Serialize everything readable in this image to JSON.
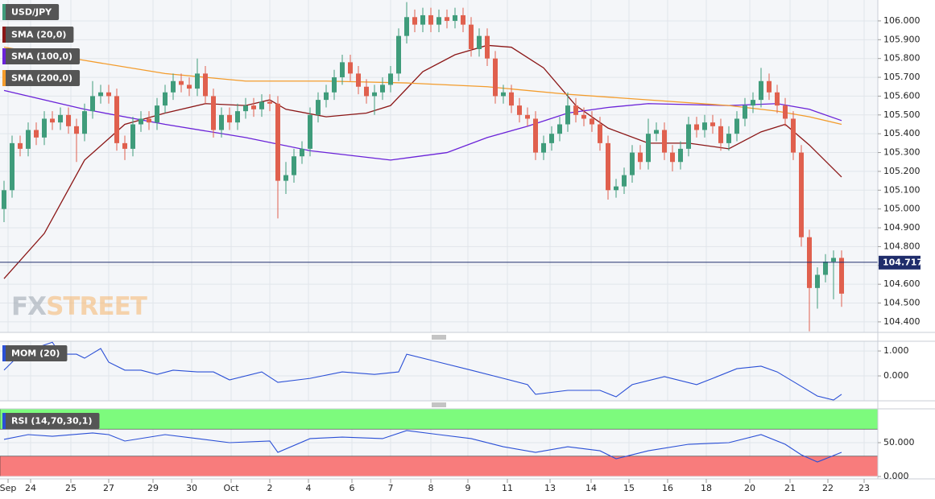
{
  "chart_data": [
    {
      "type": "candlestick",
      "title": "USD/JPY",
      "open": [
        105.0,
        105.1,
        105.35,
        105.32,
        105.42,
        105.38,
        105.48,
        105.46,
        105.5,
        105.44,
        105.4,
        105.52,
        105.6,
        105.62,
        105.6,
        105.35,
        105.32,
        105.45,
        105.48,
        105.46,
        105.55,
        105.62,
        105.68,
        105.66,
        105.64,
        105.72,
        105.6,
        105.42,
        105.5,
        105.46,
        105.52,
        105.55,
        105.53,
        105.57,
        105.56,
        105.15,
        105.18,
        105.28,
        105.32,
        105.5,
        105.58,
        105.62,
        105.7,
        105.78,
        105.72,
        105.65,
        105.6,
        105.62,
        105.66,
        105.72,
        105.92,
        106.02,
        105.98,
        106.03,
        105.98,
        106.02,
        106.0,
        106.03,
        105.98,
        105.85,
        105.92,
        105.8,
        105.6,
        105.62,
        105.55,
        105.5,
        105.48,
        105.3,
        105.35,
        105.4,
        105.45,
        105.55,
        105.5,
        105.48,
        105.45,
        105.35,
        105.1,
        105.12,
        105.18,
        105.3,
        105.25,
        105.4,
        105.42,
        105.3,
        105.25,
        105.32,
        105.45,
        105.42,
        105.46,
        105.44,
        105.35,
        105.4,
        105.48,
        105.55,
        105.58,
        105.68,
        105.62,
        105.55,
        105.48,
        105.3,
        104.85,
        104.58,
        104.65,
        104.72,
        104.74
      ],
      "high": [
        105.15,
        105.39,
        105.39,
        105.46,
        105.46,
        105.52,
        105.52,
        105.54,
        105.54,
        105.48,
        105.56,
        105.68,
        105.66,
        105.66,
        105.64,
        105.39,
        105.49,
        105.52,
        105.52,
        105.59,
        105.66,
        105.72,
        105.72,
        105.7,
        105.8,
        105.76,
        105.64,
        105.54,
        105.54,
        105.56,
        105.59,
        105.59,
        105.61,
        105.61,
        105.6,
        105.25,
        105.32,
        105.36,
        105.54,
        105.62,
        105.66,
        105.74,
        105.82,
        105.82,
        105.76,
        105.69,
        105.66,
        105.7,
        105.76,
        105.96,
        106.1,
        106.06,
        106.07,
        106.07,
        106.06,
        106.06,
        106.07,
        106.07,
        106.02,
        105.96,
        105.96,
        105.84,
        105.66,
        105.66,
        105.59,
        105.54,
        105.52,
        105.39,
        105.44,
        105.49,
        105.62,
        105.59,
        105.54,
        105.52,
        105.49,
        105.39,
        105.16,
        105.22,
        105.34,
        105.34,
        105.48,
        105.46,
        105.46,
        105.34,
        105.36,
        105.49,
        105.49,
        105.5,
        105.5,
        105.48,
        105.44,
        105.52,
        105.59,
        105.62,
        105.75,
        105.72,
        105.66,
        105.59,
        105.52,
        105.34,
        104.89,
        104.69,
        104.76,
        104.78,
        104.78
      ],
      "low": [
        104.93,
        105.06,
        105.28,
        105.28,
        105.34,
        105.34,
        105.42,
        105.42,
        105.4,
        105.25,
        105.36,
        105.48,
        105.56,
        105.56,
        105.31,
        105.26,
        105.28,
        105.41,
        105.42,
        105.42,
        105.51,
        105.58,
        105.62,
        105.6,
        105.6,
        105.56,
        105.38,
        105.38,
        105.42,
        105.42,
        105.48,
        105.49,
        105.49,
        105.52,
        104.95,
        105.08,
        105.14,
        105.24,
        105.28,
        105.46,
        105.54,
        105.58,
        105.66,
        105.68,
        105.61,
        105.56,
        105.5,
        105.58,
        105.62,
        105.68,
        105.88,
        105.94,
        105.94,
        105.94,
        105.94,
        105.96,
        105.96,
        105.94,
        105.81,
        105.81,
        105.76,
        105.56,
        105.56,
        105.51,
        105.46,
        105.44,
        105.26,
        105.26,
        105.31,
        105.36,
        105.41,
        105.46,
        105.44,
        105.41,
        105.31,
        105.05,
        105.06,
        105.08,
        105.14,
        105.21,
        105.21,
        105.36,
        105.26,
        105.2,
        105.21,
        105.28,
        105.38,
        105.38,
        105.4,
        105.31,
        105.31,
        105.36,
        105.44,
        105.51,
        105.54,
        105.58,
        105.51,
        105.44,
        105.26,
        104.8,
        104.35,
        104.47,
        104.61,
        104.52,
        104.48
      ],
      "close": [
        105.1,
        105.35,
        105.32,
        105.42,
        105.38,
        105.48,
        105.46,
        105.5,
        105.44,
        105.4,
        105.52,
        105.6,
        105.62,
        105.6,
        105.35,
        105.32,
        105.45,
        105.48,
        105.46,
        105.55,
        105.62,
        105.68,
        105.66,
        105.64,
        105.72,
        105.6,
        105.42,
        105.5,
        105.46,
        105.52,
        105.55,
        105.53,
        105.57,
        105.56,
        105.15,
        105.18,
        105.28,
        105.32,
        105.5,
        105.58,
        105.62,
        105.7,
        105.78,
        105.72,
        105.65,
        105.6,
        105.62,
        105.66,
        105.72,
        105.92,
        106.02,
        105.98,
        106.03,
        105.98,
        106.02,
        106.0,
        106.03,
        105.98,
        105.85,
        105.92,
        105.8,
        105.6,
        105.62,
        105.55,
        105.5,
        105.48,
        105.3,
        105.35,
        105.4,
        105.45,
        105.55,
        105.5,
        105.48,
        105.45,
        105.35,
        105.1,
        105.12,
        105.18,
        105.3,
        105.25,
        105.4,
        105.42,
        105.3,
        105.25,
        105.32,
        105.45,
        105.42,
        105.46,
        105.44,
        105.35,
        105.4,
        105.48,
        105.55,
        105.58,
        105.68,
        105.62,
        105.55,
        105.48,
        105.3,
        104.85,
        104.58,
        104.65,
        104.72,
        104.74,
        104.55
      ],
      "up_color": "#3f9c7b",
      "down_color": "#e0604e",
      "series": [
        {
          "name": "SMA (20,0)",
          "color": "#8b1616",
          "x": [
            0,
            5,
            10,
            15,
            20,
            25,
            30,
            33,
            35,
            40,
            45,
            48,
            52,
            56,
            60,
            63,
            67,
            71,
            75,
            80,
            85,
            90,
            94,
            97,
            100,
            104
          ],
          "values": [
            104.63,
            104.87,
            105.26,
            105.45,
            105.51,
            105.56,
            105.55,
            105.58,
            105.53,
            105.49,
            105.51,
            105.55,
            105.73,
            105.82,
            105.87,
            105.86,
            105.75,
            105.55,
            105.43,
            105.35,
            105.35,
            105.32,
            105.41,
            105.45,
            105.34,
            105.17
          ]
        },
        {
          "name": "SMA (100,0)",
          "color": "#6a22d8",
          "x": [
            0,
            10,
            20,
            30,
            38,
            48,
            55,
            60,
            65,
            70,
            75,
            80,
            90,
            96,
            100,
            104
          ],
          "values": [
            105.63,
            105.53,
            105.45,
            105.38,
            105.31,
            105.26,
            105.3,
            105.38,
            105.44,
            105.51,
            105.54,
            105.56,
            105.55,
            105.56,
            105.53,
            105.47
          ]
        },
        {
          "name": "SMA (200,0)",
          "color": "#f39c2c",
          "x": [
            0,
            10,
            20,
            30,
            40,
            50,
            60,
            70,
            80,
            90,
            96,
            100,
            104
          ],
          "values": [
            105.86,
            105.79,
            105.72,
            105.68,
            105.68,
            105.67,
            105.65,
            105.61,
            105.58,
            105.55,
            105.52,
            105.49,
            105.45
          ]
        }
      ],
      "last_price": 104.717,
      "last_price_color": "#1f2d6b",
      "ylim": [
        104.344,
        106.111
      ],
      "yticks": [
        {
          "value": 104.4,
          "label": "104.400"
        },
        {
          "value": 104.5,
          "label": "104.500"
        },
        {
          "value": 104.6,
          "label": "104.600"
        },
        {
          "value": 104.7,
          "label": "104.700"
        },
        {
          "value": 104.8,
          "label": "104.800"
        },
        {
          "value": 104.9,
          "label": "104.900"
        },
        {
          "value": 105.0,
          "label": "105.000"
        },
        {
          "value": 105.1,
          "label": "105.100"
        },
        {
          "value": 105.2,
          "label": "105.200"
        },
        {
          "value": 105.3,
          "label": "105.300"
        },
        {
          "value": 105.4,
          "label": "105.400"
        },
        {
          "value": 105.5,
          "label": "105.500"
        },
        {
          "value": 105.6,
          "label": "105.600"
        },
        {
          "value": 105.7,
          "label": "105.700"
        },
        {
          "value": 105.8,
          "label": "105.800"
        },
        {
          "value": 105.9,
          "label": "105.900"
        },
        {
          "value": 106.0,
          "label": "106.000"
        }
      ],
      "xlim": [
        -0.5,
        108.5
      ],
      "xticks": [
        {
          "value": 0.5,
          "label": "Sep"
        },
        {
          "value": 3.3,
          "label": "24"
        },
        {
          "value": 8.3,
          "label": "25"
        },
        {
          "value": 13,
          "label": "27"
        },
        {
          "value": 18.5,
          "label": "29"
        },
        {
          "value": 23.3,
          "label": "30"
        },
        {
          "value": 28.2,
          "label": "Oct"
        },
        {
          "value": 33,
          "label": "2"
        },
        {
          "value": 37.8,
          "label": "4"
        },
        {
          "value": 43.2,
          "label": "6"
        },
        {
          "value": 48,
          "label": "7"
        },
        {
          "value": 53,
          "label": "8"
        },
        {
          "value": 57.6,
          "label": "9"
        },
        {
          "value": 62.5,
          "label": "11"
        },
        {
          "value": 67.8,
          "label": "13"
        },
        {
          "value": 72.9,
          "label": "14"
        },
        {
          "value": 77.6,
          "label": "15"
        },
        {
          "value": 82.4,
          "label": "16"
        },
        {
          "value": 87.2,
          "label": "18"
        },
        {
          "value": 92.6,
          "label": "20"
        },
        {
          "value": 97.6,
          "label": "21"
        },
        {
          "value": 102.3,
          "label": "22"
        },
        {
          "value": 106.8,
          "label": "23"
        }
      ],
      "grid": true,
      "watermark": [
        "FX",
        "STREET"
      ]
    },
    {
      "type": "line",
      "title": "MOM (20)",
      "color": "#2a4fd6",
      "x": [
        0,
        2,
        4,
        6,
        7,
        9,
        10,
        12,
        13,
        15,
        17,
        19,
        21,
        24,
        26,
        28,
        32,
        34,
        38,
        42,
        46,
        49,
        50,
        54,
        58,
        62,
        65,
        66,
        70,
        74,
        76,
        78,
        82,
        86,
        88,
        91,
        94,
        96,
        99,
        101,
        103,
        104
      ],
      "values": [
        0.23,
        0.87,
        1.13,
        1.35,
        0.87,
        0.87,
        0.71,
        1.1,
        0.55,
        0.23,
        0.23,
        0.06,
        0.23,
        0.16,
        0.16,
        -0.16,
        0.16,
        -0.26,
        -0.1,
        0.16,
        0.06,
        0.16,
        0.87,
        0.55,
        0.23,
        -0.1,
        -0.35,
        -0.74,
        -0.58,
        -0.58,
        -0.84,
        -0.35,
        -0.03,
        -0.35,
        -0.1,
        0.29,
        0.39,
        0.16,
        -0.42,
        -0.81,
        -0.97,
        -0.74
      ],
      "ylim": [
        -1.0,
        1.39
      ],
      "yticks": [
        {
          "value": 1,
          "label": "1.000"
        },
        {
          "value": 0,
          "label": "0.000"
        }
      ]
    },
    {
      "type": "line",
      "title": "RSI (14,70,30,1)",
      "color": "#2a4fd6",
      "x": [
        0,
        3,
        6,
        11,
        13,
        15,
        20,
        24,
        28,
        33,
        34,
        38,
        42,
        47,
        50,
        54,
        58,
        62,
        66,
        70,
        74,
        76,
        80,
        85,
        90,
        94,
        97,
        99,
        101,
        103,
        104
      ],
      "values": [
        54.8,
        61.9,
        59.5,
        64.3,
        61.9,
        52.4,
        61.9,
        56,
        50,
        52.4,
        35.7,
        56,
        58.3,
        56,
        67.9,
        61.9,
        56,
        44,
        35.7,
        44,
        38,
        26.2,
        38,
        47.6,
        50,
        61.9,
        47.6,
        32,
        21.4,
        31,
        35.7
      ],
      "bands": [
        {
          "from": 70,
          "to": 100,
          "color": "#7dfb7d"
        },
        {
          "from": 0,
          "to": 30,
          "color": "#f87c7c"
        }
      ],
      "ylim": [
        0,
        100
      ],
      "yticks": [
        {
          "value": 50,
          "label": "50.000"
        },
        {
          "value": 0,
          "label": "0.000"
        }
      ]
    }
  ]
}
